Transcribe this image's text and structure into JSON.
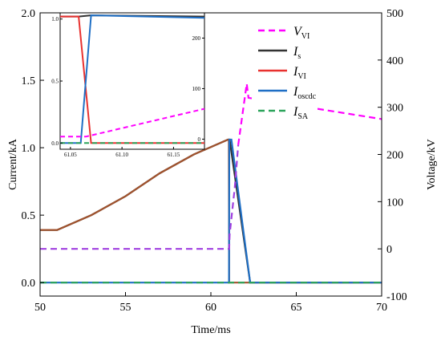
{
  "chart_data": {
    "type": "line",
    "xlabel": "Time/ms",
    "ylabel_left": "Current/kA",
    "ylabel_right": "Voltage/kV",
    "xlim": [
      50,
      70
    ],
    "ylim_left": [
      -0.1,
      2.0
    ],
    "ylim_right": [
      -100,
      500
    ],
    "x_ticks": [
      "50",
      "55",
      "60",
      "65",
      "70"
    ],
    "y_left_ticks": [
      "0.0",
      "0.5",
      "1.0",
      "1.5",
      "2.0"
    ],
    "y_right_ticks": [
      "-100",
      "0",
      "100",
      "200",
      "300",
      "400",
      "500"
    ],
    "legend": [
      {
        "main": "V",
        "sub": "VI",
        "color": "#ff00ff",
        "dash": "dashed"
      },
      {
        "main": "I",
        "sub": "s",
        "color": "#333333",
        "dash": "solid"
      },
      {
        "main": "I",
        "sub": "VI",
        "color": "#e8312f",
        "dash": "solid"
      },
      {
        "main": "I",
        "sub": "oscdc",
        "color": "#1f6fc5",
        "dash": "solid"
      },
      {
        "main": "I",
        "sub": "SA",
        "color": "#2aa35a",
        "dash": "dashed"
      }
    ],
    "series": [
      {
        "name": "Is",
        "axis": "left",
        "color": "#333333",
        "dash": "solid",
        "x": [
          50,
          51,
          53,
          55,
          57,
          59,
          61,
          61.1,
          62.3,
          70
        ],
        "y": [
          0.39,
          0.39,
          0.5,
          0.64,
          0.81,
          0.95,
          1.06,
          1.06,
          0.0,
          0.0
        ]
      },
      {
        "name": "IVI",
        "axis": "left",
        "color": "#a0522d",
        "dash": "solid",
        "x": [
          50,
          51,
          53,
          55,
          57,
          59,
          61,
          61.05,
          61.07,
          70
        ],
        "y": [
          0.39,
          0.39,
          0.5,
          0.64,
          0.81,
          0.95,
          1.06,
          1.06,
          0.0,
          0.0
        ]
      },
      {
        "name": "Ioscdc",
        "axis": "left",
        "color": "#1f6fc5",
        "dash": "solid",
        "x": [
          50,
          61.06,
          61.08,
          61.2,
          62.3,
          70
        ],
        "y": [
          0.0,
          0.0,
          1.06,
          1.06,
          0.0,
          0.0
        ]
      },
      {
        "name": "ISA",
        "axis": "left",
        "color": "#2aa35a",
        "dash": "dashed",
        "x": [
          50,
          70
        ],
        "y": [
          0.0,
          0.0
        ]
      },
      {
        "name": "VVI",
        "axis": "right",
        "color": "#a040e0",
        "dash": "dashed",
        "x": [
          50,
          61.07,
          61.1,
          61.4,
          61.6
        ],
        "y": [
          0,
          0,
          30,
          130,
          220
        ]
      },
      {
        "name": "VVI-peak",
        "axis": "right",
        "color": "#ff00ff",
        "dash": "dashed",
        "x": [
          61.6,
          62.1,
          62.2,
          70
        ],
        "y": [
          220,
          350,
          320,
          275
        ]
      }
    ],
    "inset": {
      "xlim": [
        61.04,
        61.18
      ],
      "ylim_left": [
        -0.05,
        1.05
      ],
      "ylim_right": [
        -20,
        250
      ],
      "x_ticks": [
        "61.05",
        "61.10",
        "61.15"
      ],
      "y_left_ticks": [
        "0.0",
        "0.5",
        "1.0"
      ],
      "y_right_ticks": [
        "0",
        "100",
        "200"
      ],
      "series": [
        {
          "name": "Is",
          "axis": "left",
          "color": "#333333",
          "x": [
            61.04,
            61.058,
            61.07,
            61.18
          ],
          "y": [
            1.02,
            1.02,
            1.03,
            1.02
          ]
        },
        {
          "name": "IVI",
          "axis": "left",
          "color": "#e8312f",
          "x": [
            61.04,
            61.058,
            61.07,
            61.18
          ],
          "y": [
            1.02,
            1.02,
            0.0,
            0.0
          ]
        },
        {
          "name": "Ioscdc",
          "axis": "left",
          "color": "#1f6fc5",
          "x": [
            61.04,
            61.06,
            61.07,
            61.18
          ],
          "y": [
            0.0,
            0.0,
            1.03,
            1.01
          ]
        },
        {
          "name": "ISA",
          "axis": "left",
          "color": "#2aa35a",
          "dash": "dashed",
          "x": [
            61.04,
            61.18
          ],
          "y": [
            0.0,
            0.0
          ]
        },
        {
          "name": "VVI",
          "axis": "right",
          "color": "#ff00ff",
          "dash": "dashed",
          "x": [
            61.04,
            61.065,
            61.18
          ],
          "y": [
            5,
            5,
            60
          ]
        }
      ]
    }
  }
}
